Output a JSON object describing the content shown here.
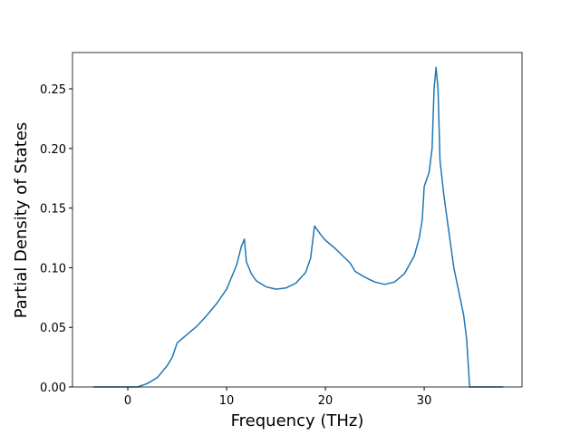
{
  "chart_data": {
    "type": "line",
    "xlabel": "Frequency (THz)",
    "ylabel": "Partial Density of States",
    "x": [
      -3.5,
      1,
      2,
      3,
      4,
      4.5,
      5,
      6,
      7,
      8,
      9,
      10,
      11,
      11.5,
      11.8,
      12,
      12.5,
      13,
      14,
      15,
      16,
      17,
      18,
      18.5,
      18.9,
      19.5,
      20,
      21,
      22,
      22.5,
      23,
      24,
      25,
      26,
      27,
      28,
      29,
      29.5,
      29.8,
      30,
      30.5,
      30.8,
      31,
      31.2,
      31.4,
      31.6,
      32,
      32.5,
      33,
      33.5,
      34,
      34.3,
      34.6,
      38
    ],
    "values": [
      0,
      0,
      0.003,
      0.008,
      0.018,
      0.025,
      0.037,
      0.044,
      0.051,
      0.06,
      0.07,
      0.082,
      0.102,
      0.118,
      0.124,
      0.105,
      0.095,
      0.089,
      0.084,
      0.082,
      0.083,
      0.087,
      0.096,
      0.108,
      0.135,
      0.128,
      0.123,
      0.116,
      0.108,
      0.104,
      0.097,
      0.092,
      0.088,
      0.086,
      0.088,
      0.095,
      0.11,
      0.125,
      0.14,
      0.168,
      0.18,
      0.2,
      0.25,
      0.268,
      0.25,
      0.19,
      0.16,
      0.13,
      0.1,
      0.08,
      0.06,
      0.04,
      0,
      0
    ],
    "color": "#1f77b4",
    "xlim": [
      -5.6,
      39.9
    ],
    "xticks": [
      0,
      10,
      20,
      30
    ],
    "ylim": [
      0,
      0.2804
    ],
    "yticks": [
      {
        "value": 0,
        "label": "0.00"
      },
      {
        "value": 0.05,
        "label": "0.05"
      },
      {
        "value": 0.1,
        "label": "0.10"
      },
      {
        "value": 0.15,
        "label": "0.15"
      },
      {
        "value": 0.2,
        "label": "0.20"
      },
      {
        "value": 0.25,
        "label": "0.25"
      }
    ],
    "grid": false
  }
}
